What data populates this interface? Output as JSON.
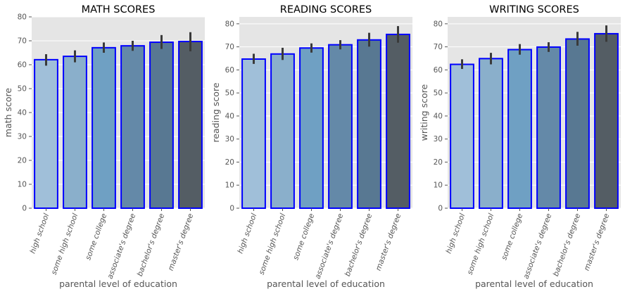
{
  "chart_data": [
    {
      "type": "bar",
      "title": "MATH SCORES",
      "xlabel": "parental level of education",
      "ylabel": "math score",
      "categories": [
        "high school",
        "some high school",
        "some college",
        "associate's degree",
        "bachelor's degree",
        "master's degree"
      ],
      "values": [
        62.1,
        63.5,
        67.1,
        67.9,
        69.4,
        69.7
      ],
      "ci_low": [
        59.6,
        61.0,
        65.0,
        65.8,
        66.6,
        65.6
      ],
      "ci_high": [
        64.4,
        66.0,
        69.3,
        70.0,
        72.4,
        73.6
      ],
      "ylim": [
        0,
        80
      ],
      "yticks": [
        0,
        10,
        20,
        30,
        40,
        50,
        60,
        70,
        80
      ],
      "grid": true
    },
    {
      "type": "bar",
      "title": "READING SCORES",
      "xlabel": "parental level of education",
      "ylabel": "reading score",
      "categories": [
        "high school",
        "some high school",
        "some college",
        "associate's degree",
        "bachelor's degree",
        "master's degree"
      ],
      "values": [
        64.7,
        66.9,
        69.5,
        70.9,
        73.0,
        75.4
      ],
      "ci_low": [
        62.6,
        64.3,
        67.5,
        68.9,
        70.1,
        71.8
      ],
      "ci_high": [
        67.0,
        69.6,
        71.5,
        72.9,
        76.1,
        79.0
      ],
      "ylim": [
        0,
        83
      ],
      "yticks": [
        0,
        10,
        20,
        30,
        40,
        50,
        60,
        70,
        80
      ],
      "grid": true
    },
    {
      "type": "bar",
      "title": "WRITING SCORES",
      "xlabel": "parental level of education",
      "ylabel": "writing score",
      "categories": [
        "high school",
        "some high school",
        "some college",
        "associate's degree",
        "bachelor's degree",
        "master's degree"
      ],
      "values": [
        62.4,
        64.9,
        68.8,
        69.9,
        73.4,
        75.7
      ],
      "ci_low": [
        60.4,
        62.4,
        66.6,
        67.8,
        70.5,
        72.2
      ],
      "ci_high": [
        64.6,
        67.4,
        71.2,
        72.0,
        76.5,
        79.3
      ],
      "ylim": [
        0,
        83
      ],
      "yticks": [
        0,
        10,
        20,
        30,
        40,
        50,
        60,
        70,
        80
      ],
      "grid": true
    }
  ],
  "colors": {
    "plot_background": "#e5e5e5",
    "grid": "#ffffff",
    "bar_edge": "#0000ff",
    "error_bar": "#3a3a3a",
    "bar_palette": [
      "#a0bfd9",
      "#8aafcb",
      "#6fa0c3",
      "#6489a8",
      "#587892",
      "#545d64"
    ]
  }
}
